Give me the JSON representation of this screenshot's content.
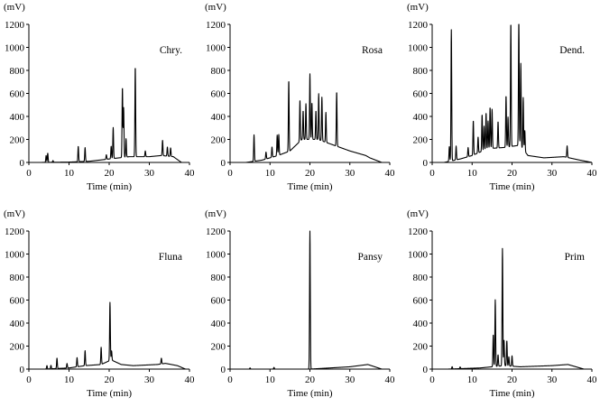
{
  "chart_data": {
    "type": "line",
    "layout": "2x3 grid",
    "y_unit_label": "(mV)",
    "xlabel": "Time (min)",
    "xlim": [
      0,
      40
    ],
    "ylim": [
      0,
      1200
    ],
    "xticks": [
      0,
      10,
      20,
      30,
      40
    ],
    "yticks": [
      0,
      200,
      400,
      600,
      800,
      1000,
      1200
    ],
    "legend": "top-right label per panel",
    "panels": [
      {
        "name": "Chry.",
        "baseline": [
          [
            3,
            0
          ],
          [
            10,
            3
          ],
          [
            15,
            10
          ],
          [
            20,
            30
          ],
          [
            25,
            50
          ],
          [
            30,
            50
          ],
          [
            33,
            60
          ],
          [
            36,
            50
          ],
          [
            38,
            0
          ],
          [
            40,
            0
          ]
        ],
        "peaks": [
          [
            4.3,
            60
          ],
          [
            4.7,
            80
          ],
          [
            6,
            15
          ],
          [
            12.3,
            135
          ],
          [
            14,
            120
          ],
          [
            19.3,
            40
          ],
          [
            20.5,
            110
          ],
          [
            21,
            270
          ],
          [
            23.3,
            610
          ],
          [
            23.6,
            430
          ],
          [
            24.2,
            160
          ],
          [
            26.5,
            785
          ],
          [
            29,
            50
          ],
          [
            33.3,
            135
          ],
          [
            34.5,
            80
          ],
          [
            35.3,
            75
          ]
        ]
      },
      {
        "name": "Rosa",
        "baseline": [
          [
            4,
            0
          ],
          [
            8,
            20
          ],
          [
            12,
            60
          ],
          [
            15,
            100
          ],
          [
            18,
            200
          ],
          [
            22,
            200
          ],
          [
            26,
            150
          ],
          [
            30,
            100
          ],
          [
            34,
            60
          ],
          [
            35,
            40
          ],
          [
            38,
            0
          ],
          [
            40,
            0
          ]
        ],
        "peaks": [
          [
            6,
            230
          ],
          [
            9,
            60
          ],
          [
            10.5,
            90
          ],
          [
            11.8,
            180
          ],
          [
            12.2,
            180
          ],
          [
            14.7,
            620
          ],
          [
            17.5,
            360
          ],
          [
            18.3,
            250
          ],
          [
            19,
            310
          ],
          [
            20,
            570
          ],
          [
            20.5,
            320
          ],
          [
            21.5,
            250
          ],
          [
            22.2,
            400
          ],
          [
            23,
            380
          ],
          [
            24,
            260
          ],
          [
            26.7,
            475
          ]
        ]
      },
      {
        "name": "Dend.",
        "baseline": [
          [
            3,
            0
          ],
          [
            7,
            30
          ],
          [
            10,
            60
          ],
          [
            14,
            120
          ],
          [
            18,
            130
          ],
          [
            22,
            150
          ],
          [
            24,
            60
          ],
          [
            28,
            40
          ],
          [
            33,
            50
          ],
          [
            37,
            20
          ],
          [
            40,
            0
          ]
        ],
        "peaks": [
          [
            4.3,
            130
          ],
          [
            4.8,
            1140
          ],
          [
            6,
            120
          ],
          [
            9,
            80
          ],
          [
            10.3,
            300
          ],
          [
            11.5,
            140
          ],
          [
            12.5,
            320
          ],
          [
            13,
            210
          ],
          [
            13.5,
            320
          ],
          [
            14,
            240
          ],
          [
            14.5,
            360
          ],
          [
            15,
            340
          ],
          [
            16.5,
            230
          ],
          [
            18.5,
            450
          ],
          [
            19,
            260
          ],
          [
            19.7,
            1080
          ],
          [
            21.7,
            1120
          ],
          [
            22.2,
            720
          ],
          [
            22.8,
            450
          ],
          [
            23.2,
            180
          ],
          [
            33.8,
            100
          ]
        ]
      },
      {
        "name": "Fluna",
        "baseline": [
          [
            4,
            0
          ],
          [
            10,
            10
          ],
          [
            14,
            30
          ],
          [
            18,
            40
          ],
          [
            20.5,
            80
          ],
          [
            23,
            40
          ],
          [
            26,
            30
          ],
          [
            32,
            40
          ],
          [
            34,
            50
          ],
          [
            37,
            30
          ],
          [
            39,
            0
          ],
          [
            40,
            0
          ]
        ],
        "peaks": [
          [
            4.5,
            30
          ],
          [
            5.5,
            30
          ],
          [
            7,
            90
          ],
          [
            9.5,
            40
          ],
          [
            12,
            80
          ],
          [
            14,
            130
          ],
          [
            18,
            150
          ],
          [
            20.2,
            505
          ],
          [
            20.6,
            80
          ],
          [
            33,
            50
          ]
        ]
      },
      {
        "name": "Pansy",
        "baseline": [
          [
            4,
            0
          ],
          [
            20,
            0
          ],
          [
            25,
            10
          ],
          [
            30,
            20
          ],
          [
            34.5,
            40
          ],
          [
            38,
            0
          ],
          [
            40,
            0
          ]
        ],
        "peaks": [
          [
            5,
            10
          ],
          [
            11,
            15
          ],
          [
            20,
            1200
          ]
        ]
      },
      {
        "name": "Prim",
        "baseline": [
          [
            4,
            0
          ],
          [
            12,
            10
          ],
          [
            18,
            30
          ],
          [
            22,
            20
          ],
          [
            30,
            30
          ],
          [
            34,
            40
          ],
          [
            38,
            0
          ],
          [
            40,
            0
          ]
        ],
        "peaks": [
          [
            5,
            20
          ],
          [
            7,
            15
          ],
          [
            15.3,
            280
          ],
          [
            15.8,
            580
          ],
          [
            16.5,
            100
          ],
          [
            17.6,
            1020
          ],
          [
            18,
            220
          ],
          [
            18.7,
            220
          ],
          [
            19.2,
            80
          ],
          [
            20,
            90
          ]
        ]
      }
    ]
  }
}
